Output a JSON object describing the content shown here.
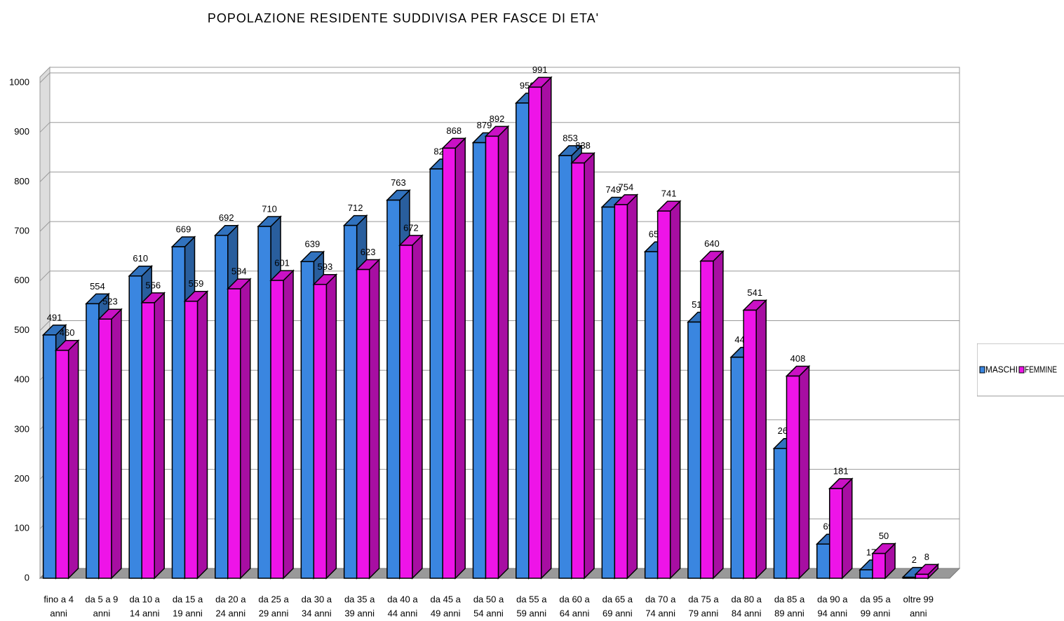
{
  "chart_data": {
    "type": "bar3d",
    "title": "POPOLAZIONE RESIDENTE SUDDIVISA PER FASCE DI ETA'",
    "categories": [
      [
        "fino a 4",
        "anni"
      ],
      [
        "da 5 a 9",
        "anni"
      ],
      [
        "da 10 a",
        "14 anni"
      ],
      [
        "da 15 a",
        "19 anni"
      ],
      [
        "da 20 a",
        "24 anni"
      ],
      [
        "da 25 a",
        "29 anni"
      ],
      [
        "da 30 a",
        "34 anni"
      ],
      [
        "da 35 a",
        "39 anni"
      ],
      [
        "da 40 a",
        "44 anni"
      ],
      [
        "da 45 a",
        "49 anni"
      ],
      [
        "da 50 a",
        "54 anni"
      ],
      [
        "da 55 a",
        "59 anni"
      ],
      [
        "da 60 a",
        "64 anni"
      ],
      [
        "da 65 a",
        "69 anni"
      ],
      [
        "da 70 a",
        "74 anni"
      ],
      [
        "da 75 a",
        "79 anni"
      ],
      [
        "da 80 a",
        "84 anni"
      ],
      [
        "da 85 a",
        "89 anni"
      ],
      [
        "da 90 a",
        "94 anni"
      ],
      [
        "da 95 a",
        "99 anni"
      ],
      [
        "oltre 99",
        "anni"
      ]
    ],
    "series": [
      {
        "name": "MASCHI",
        "color": "#3a86e0",
        "values": [
          491,
          554,
          610,
          669,
          692,
          710,
          639,
          712,
          763,
          826,
          879,
          959,
          853,
          749,
          659,
          517,
          446,
          262,
          69,
          17,
          2
        ]
      },
      {
        "name": "FEMMINE",
        "color": "#ee14e8",
        "values": [
          460,
          523,
          556,
          559,
          584,
          601,
          593,
          623,
          672,
          868,
          892,
          991,
          838,
          754,
          741,
          640,
          541,
          408,
          181,
          50,
          8
        ]
      }
    ],
    "ylim": [
      0,
      1000
    ],
    "yticks": [
      0,
      100,
      200,
      300,
      400,
      500,
      600,
      700,
      800,
      900,
      1000
    ],
    "grid": true,
    "legend": "right"
  }
}
